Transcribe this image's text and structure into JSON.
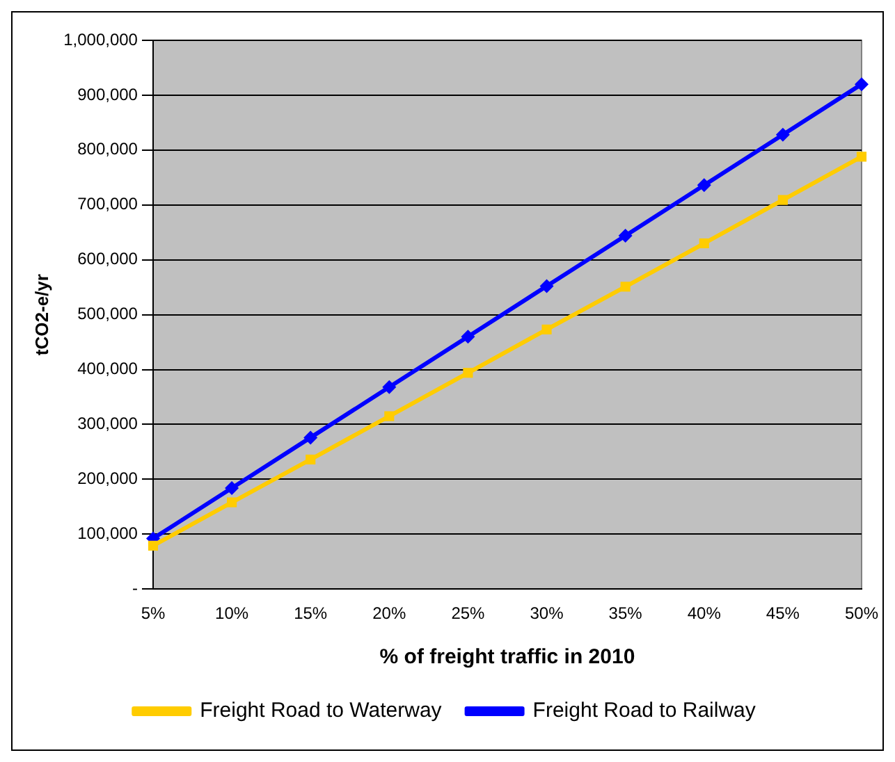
{
  "chart_data": {
    "type": "line",
    "xlabel": "% of freight traffic in 2010",
    "ylabel": "tCO2-e/yr",
    "categories": [
      "5%",
      "10%",
      "15%",
      "20%",
      "25%",
      "30%",
      "35%",
      "40%",
      "45%",
      "50%"
    ],
    "series": [
      {
        "name": "Freight Road to Waterway",
        "color": "#ffcc00",
        "marker": "square",
        "values": [
          79000,
          158000,
          236000,
          315000,
          394000,
          473000,
          551000,
          630000,
          709000,
          788000
        ]
      },
      {
        "name": "Freight Road to Railway",
        "color": "#0000ff",
        "marker": "diamond",
        "values": [
          92000,
          184000,
          276000,
          368000,
          460000,
          552000,
          644000,
          736000,
          828000,
          920000
        ]
      }
    ],
    "ylim": [
      0,
      1000000
    ],
    "yticks": [
      {
        "value": 0,
        "label": "-"
      },
      {
        "value": 100000,
        "label": "100,000"
      },
      {
        "value": 200000,
        "label": "200,000"
      },
      {
        "value": 300000,
        "label": "300,000"
      },
      {
        "value": 400000,
        "label": "400,000"
      },
      {
        "value": 500000,
        "label": "500,000"
      },
      {
        "value": 600000,
        "label": "600,000"
      },
      {
        "value": 700000,
        "label": "700,000"
      },
      {
        "value": 800000,
        "label": "800,000"
      },
      {
        "value": 900000,
        "label": "900,000"
      },
      {
        "value": 1000000,
        "label": "1,000,000"
      }
    ],
    "grid": "y",
    "legend": "bottom",
    "line_style": "solid"
  }
}
